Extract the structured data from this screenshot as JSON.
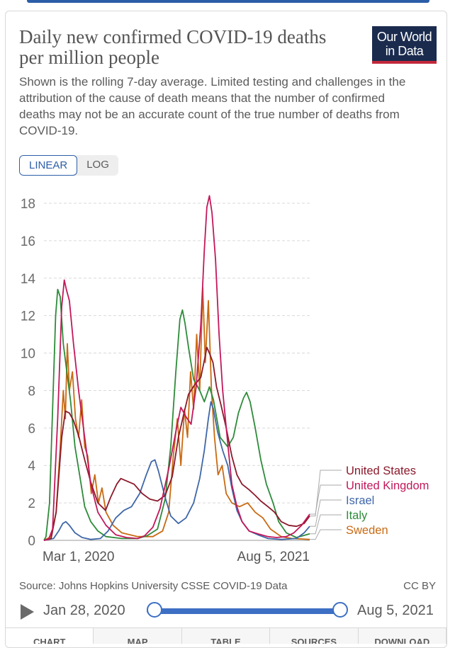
{
  "header": {
    "title": "Daily new confirmed COVID-19 deaths per million people",
    "subtitle": "Shown is the rolling 7-day average. Limited testing and challenges in the attribution of the cause of death means that the number of confirmed deaths may not be an accurate count of the true number of deaths from COVID-19.",
    "logo_line1": "Our World",
    "logo_line2": "in Data"
  },
  "controls": {
    "linear_label": "LINEAR",
    "log_label": "LOG",
    "active": "LINEAR"
  },
  "footer": {
    "source": "Source: Johns Hopkins University CSSE COVID-19 Data",
    "license": "CC BY"
  },
  "timeline": {
    "start_label": "Jan 28, 2020",
    "end_label": "Aug 5, 2021"
  },
  "tabs": [
    "CHART",
    "MAP",
    "TABLE",
    "SOURCES",
    "DOWNLOAD"
  ],
  "chart_data": {
    "type": "line",
    "title": "",
    "xlabel": "",
    "ylabel": "",
    "x_tick_labels": [
      "Mar 1, 2020",
      "Aug 5, 2021"
    ],
    "y_ticks": [
      0,
      2,
      4,
      6,
      8,
      10,
      12,
      14,
      16,
      18
    ],
    "ylim": [
      0,
      19
    ],
    "xlim": [
      "2020-03-01",
      "2021-08-05"
    ],
    "grid": "horizontal dashed",
    "legend": "right, labels at line ends",
    "series": [
      {
        "name": "United States",
        "color": "#8b1a2b",
        "points": [
          [
            "2020-03-01",
            0
          ],
          [
            "2020-03-15",
            0.1
          ],
          [
            "2020-03-25",
            1.5
          ],
          [
            "2020-04-05",
            5.5
          ],
          [
            "2020-04-12",
            6.9
          ],
          [
            "2020-04-20",
            6.8
          ],
          [
            "2020-04-28",
            6.4
          ],
          [
            "2020-05-08",
            5.6
          ],
          [
            "2020-05-20",
            4.3
          ],
          [
            "2020-06-01",
            3.1
          ],
          [
            "2020-06-15",
            2.0
          ],
          [
            "2020-06-30",
            1.6
          ],
          [
            "2020-07-10",
            2.3
          ],
          [
            "2020-07-22",
            3.0
          ],
          [
            "2020-07-30",
            3.3
          ],
          [
            "2020-08-08",
            3.2
          ],
          [
            "2020-08-25",
            3.0
          ],
          [
            "2020-09-10",
            2.5
          ],
          [
            "2020-09-25",
            2.2
          ],
          [
            "2020-10-10",
            2.1
          ],
          [
            "2020-10-25",
            2.4
          ],
          [
            "2020-11-08",
            3.4
          ],
          [
            "2020-11-20",
            5.5
          ],
          [
            "2020-12-01",
            6.8
          ],
          [
            "2020-12-10",
            7.8
          ],
          [
            "2020-12-22",
            8.3
          ],
          [
            "2021-01-03",
            8.7
          ],
          [
            "2021-01-10",
            9.6
          ],
          [
            "2021-01-15",
            10.3
          ],
          [
            "2021-01-20",
            10.0
          ],
          [
            "2021-01-27",
            9.5
          ],
          [
            "2021-02-03",
            8.2
          ],
          [
            "2021-02-12",
            7.2
          ],
          [
            "2021-02-22",
            6.0
          ],
          [
            "2021-03-05",
            4.5
          ],
          [
            "2021-03-15",
            3.5
          ],
          [
            "2021-03-25",
            3.0
          ],
          [
            "2021-04-08",
            2.7
          ],
          [
            "2021-04-20",
            2.4
          ],
          [
            "2021-05-01",
            2.1
          ],
          [
            "2021-05-15",
            1.8
          ],
          [
            "2021-05-28",
            1.5
          ],
          [
            "2021-06-10",
            1.0
          ],
          [
            "2021-06-25",
            0.8
          ],
          [
            "2021-07-10",
            0.75
          ],
          [
            "2021-07-25",
            0.9
          ],
          [
            "2021-08-05",
            1.3
          ]
        ]
      },
      {
        "name": "United Kingdom",
        "color": "#c2185b",
        "points": [
          [
            "2020-03-01",
            0
          ],
          [
            "2020-03-10",
            0.05
          ],
          [
            "2020-03-18",
            0.6
          ],
          [
            "2020-03-28",
            6.5
          ],
          [
            "2020-04-05",
            12.5
          ],
          [
            "2020-04-10",
            13.9
          ],
          [
            "2020-04-14",
            13.4
          ],
          [
            "2020-04-20",
            12.8
          ],
          [
            "2020-04-28",
            10.5
          ],
          [
            "2020-05-08",
            8.0
          ],
          [
            "2020-05-20",
            5.5
          ],
          [
            "2020-06-01",
            3.0
          ],
          [
            "2020-06-15",
            1.5
          ],
          [
            "2020-07-01",
            0.8
          ],
          [
            "2020-07-20",
            0.3
          ],
          [
            "2020-08-10",
            0.15
          ],
          [
            "2020-09-01",
            0.1
          ],
          [
            "2020-09-15",
            0.25
          ],
          [
            "2020-10-01",
            0.7
          ],
          [
            "2020-10-15",
            1.7
          ],
          [
            "2020-11-01",
            3.8
          ],
          [
            "2020-11-15",
            5.8
          ],
          [
            "2020-11-25",
            7.1
          ],
          [
            "2020-12-05",
            6.6
          ],
          [
            "2020-12-15",
            6.2
          ],
          [
            "2020-12-25",
            8.2
          ],
          [
            "2021-01-03",
            11.5
          ],
          [
            "2021-01-10",
            15.5
          ],
          [
            "2021-01-15",
            17.8
          ],
          [
            "2021-01-20",
            18.4
          ],
          [
            "2021-01-25",
            17.5
          ],
          [
            "2021-02-01",
            15.0
          ],
          [
            "2021-02-08",
            11.0
          ],
          [
            "2021-02-15",
            8.0
          ],
          [
            "2021-02-25",
            5.2
          ],
          [
            "2021-03-05",
            3.0
          ],
          [
            "2021-03-15",
            1.8
          ],
          [
            "2021-03-25",
            1.0
          ],
          [
            "2021-04-08",
            0.5
          ],
          [
            "2021-04-25",
            0.35
          ],
          [
            "2021-05-15",
            0.2
          ],
          [
            "2021-06-01",
            0.15
          ],
          [
            "2021-06-20",
            0.2
          ],
          [
            "2021-07-05",
            0.4
          ],
          [
            "2021-07-20",
            0.8
          ],
          [
            "2021-08-05",
            1.4
          ]
        ]
      },
      {
        "name": "Israel",
        "color": "#3f67a8",
        "points": [
          [
            "2020-03-01",
            0
          ],
          [
            "2020-03-20",
            0.1
          ],
          [
            "2020-03-30",
            0.5
          ],
          [
            "2020-04-07",
            0.9
          ],
          [
            "2020-04-13",
            1.0
          ],
          [
            "2020-04-20",
            0.8
          ],
          [
            "2020-05-01",
            0.4
          ],
          [
            "2020-05-15",
            0.15
          ],
          [
            "2020-06-01",
            0.05
          ],
          [
            "2020-06-20",
            0.1
          ],
          [
            "2020-07-05",
            0.5
          ],
          [
            "2020-07-20",
            1.2
          ],
          [
            "2020-08-05",
            1.6
          ],
          [
            "2020-08-20",
            1.8
          ],
          [
            "2020-09-05",
            2.5
          ],
          [
            "2020-09-18",
            3.5
          ],
          [
            "2020-09-28",
            4.2
          ],
          [
            "2020-10-05",
            4.3
          ],
          [
            "2020-10-12",
            3.7
          ],
          [
            "2020-10-25",
            2.3
          ],
          [
            "2020-11-05",
            1.3
          ],
          [
            "2020-11-20",
            0.9
          ],
          [
            "2020-12-05",
            1.2
          ],
          [
            "2020-12-20",
            2.0
          ],
          [
            "2021-01-01",
            3.3
          ],
          [
            "2021-01-10",
            4.8
          ],
          [
            "2021-01-18",
            6.5
          ],
          [
            "2021-01-23",
            7.4
          ],
          [
            "2021-01-28",
            7.0
          ],
          [
            "2021-02-05",
            5.8
          ],
          [
            "2021-02-15",
            4.8
          ],
          [
            "2021-02-25",
            4.0
          ],
          [
            "2021-03-05",
            2.8
          ],
          [
            "2021-03-15",
            1.6
          ],
          [
            "2021-03-25",
            1.0
          ],
          [
            "2021-04-08",
            0.5
          ],
          [
            "2021-04-25",
            0.3
          ],
          [
            "2021-05-15",
            0.1
          ],
          [
            "2021-06-10",
            0.05
          ],
          [
            "2021-07-10",
            0.1
          ],
          [
            "2021-07-25",
            0.4
          ],
          [
            "2021-08-05",
            0.75
          ]
        ]
      },
      {
        "name": "Italy",
        "color": "#2e8b3a",
        "points": [
          [
            "2020-03-01",
            0
          ],
          [
            "2020-03-05",
            0.2
          ],
          [
            "2020-03-12",
            2.0
          ],
          [
            "2020-03-18",
            7.0
          ],
          [
            "2020-03-24",
            12.0
          ],
          [
            "2020-03-28",
            13.4
          ],
          [
            "2020-04-02",
            13.0
          ],
          [
            "2020-04-08",
            10.5
          ],
          [
            "2020-04-15",
            9.0
          ],
          [
            "2020-04-22",
            7.5
          ],
          [
            "2020-05-01",
            5.0
          ],
          [
            "2020-05-10",
            3.5
          ],
          [
            "2020-05-20",
            1.8
          ],
          [
            "2020-06-01",
            1.0
          ],
          [
            "2020-06-15",
            0.5
          ],
          [
            "2020-07-01",
            0.2
          ],
          [
            "2020-08-01",
            0.1
          ],
          [
            "2020-09-01",
            0.1
          ],
          [
            "2020-09-20",
            0.25
          ],
          [
            "2020-10-10",
            0.6
          ],
          [
            "2020-10-25",
            2.2
          ],
          [
            "2020-11-05",
            5.0
          ],
          [
            "2020-11-15",
            9.0
          ],
          [
            "2020-11-23",
            11.8
          ],
          [
            "2020-11-28",
            12.3
          ],
          [
            "2020-12-03",
            11.6
          ],
          [
            "2020-12-10",
            10.3
          ],
          [
            "2020-12-20",
            8.6
          ],
          [
            "2021-01-01",
            8.0
          ],
          [
            "2021-01-10",
            7.4
          ],
          [
            "2021-01-20",
            8.2
          ],
          [
            "2021-01-28",
            7.5
          ],
          [
            "2021-02-10",
            5.5
          ],
          [
            "2021-02-25",
            5.0
          ],
          [
            "2021-03-08",
            5.5
          ],
          [
            "2021-03-18",
            6.8
          ],
          [
            "2021-03-28",
            7.6
          ],
          [
            "2021-04-03",
            7.9
          ],
          [
            "2021-04-10",
            7.4
          ],
          [
            "2021-04-20",
            6.0
          ],
          [
            "2021-05-01",
            4.3
          ],
          [
            "2021-05-12",
            3.0
          ],
          [
            "2021-05-25",
            2.0
          ],
          [
            "2021-06-05",
            1.0
          ],
          [
            "2021-06-20",
            0.4
          ],
          [
            "2021-07-10",
            0.15
          ],
          [
            "2021-08-05",
            0.35
          ]
        ]
      },
      {
        "name": "Sweden",
        "color": "#c96a12",
        "points": [
          [
            "2020-03-01",
            0
          ],
          [
            "2020-03-15",
            0.2
          ],
          [
            "2020-03-25",
            1.5
          ],
          [
            "2020-04-02",
            5.0
          ],
          [
            "2020-04-08",
            8.0
          ],
          [
            "2020-04-12",
            6.5
          ],
          [
            "2020-04-16",
            10.5
          ],
          [
            "2020-04-20",
            8.0
          ],
          [
            "2020-04-26",
            9.0
          ],
          [
            "2020-05-02",
            6.5
          ],
          [
            "2020-05-08",
            5.5
          ],
          [
            "2020-05-14",
            7.5
          ],
          [
            "2020-05-20",
            5.0
          ],
          [
            "2020-05-26",
            4.5
          ],
          [
            "2020-06-02",
            2.5
          ],
          [
            "2020-06-09",
            3.5
          ],
          [
            "2020-06-16",
            2.0
          ],
          [
            "2020-06-23",
            2.8
          ],
          [
            "2020-07-01",
            1.5
          ],
          [
            "2020-07-15",
            0.8
          ],
          [
            "2020-08-01",
            0.4
          ],
          [
            "2020-09-01",
            0.2
          ],
          [
            "2020-10-01",
            0.2
          ],
          [
            "2020-10-20",
            0.5
          ],
          [
            "2020-11-01",
            1.5
          ],
          [
            "2020-11-10",
            4.5
          ],
          [
            "2020-11-18",
            6.5
          ],
          [
            "2020-11-25",
            4.0
          ],
          [
            "2020-12-02",
            7.0
          ],
          [
            "2020-12-08",
            5.5
          ],
          [
            "2020-12-14",
            9.0
          ],
          [
            "2020-12-20",
            7.0
          ],
          [
            "2020-12-26",
            11.0
          ],
          [
            "2021-01-01",
            8.0
          ],
          [
            "2021-01-07",
            13.5
          ],
          [
            "2021-01-12",
            9.5
          ],
          [
            "2021-01-18",
            12.8
          ],
          [
            "2021-01-24",
            8.0
          ],
          [
            "2021-01-30",
            5.5
          ],
          [
            "2021-02-06",
            3.5
          ],
          [
            "2021-02-14",
            4.0
          ],
          [
            "2021-02-22",
            2.5
          ],
          [
            "2021-03-05",
            2.0
          ],
          [
            "2021-03-20",
            1.8
          ],
          [
            "2021-04-05",
            2.0
          ],
          [
            "2021-04-20",
            1.5
          ],
          [
            "2021-05-05",
            1.2
          ],
          [
            "2021-05-20",
            0.6
          ],
          [
            "2021-06-10",
            0.2
          ],
          [
            "2021-07-01",
            0.1
          ],
          [
            "2021-08-05",
            0.05
          ]
        ]
      }
    ]
  }
}
